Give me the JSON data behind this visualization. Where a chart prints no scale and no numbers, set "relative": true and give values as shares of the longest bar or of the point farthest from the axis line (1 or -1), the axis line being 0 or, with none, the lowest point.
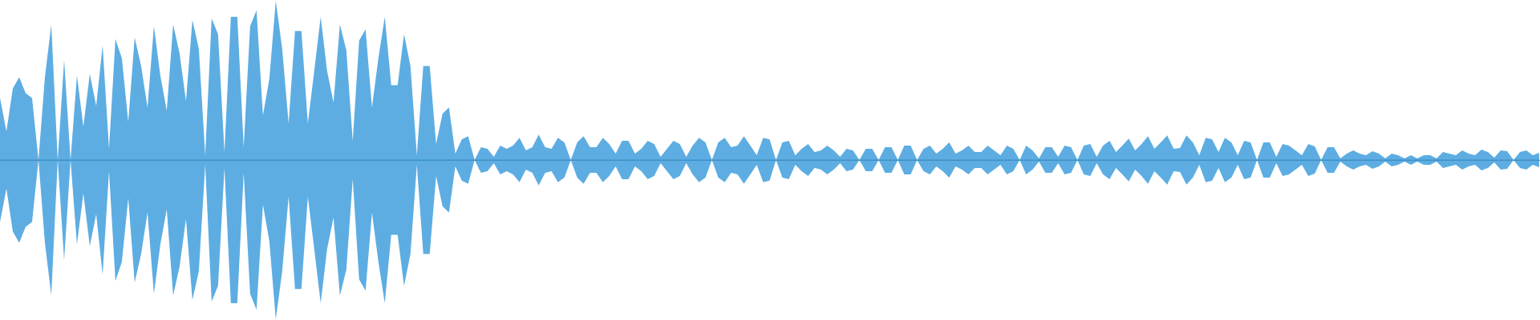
{
  "chart_data": {
    "type": "area",
    "relative": true,
    "tick_labels": false,
    "legend": false,
    "ref_lines": [
      {
        "axis": "y",
        "value": 0,
        "color": "#3f8fc5"
      }
    ],
    "categories": [
      null,
      null,
      null,
      null,
      null,
      null,
      null,
      null,
      null,
      null,
      null,
      null,
      null,
      null,
      null,
      null,
      null,
      null,
      null,
      null,
      null,
      null,
      null,
      null,
      null,
      null,
      null,
      null,
      null,
      null,
      null,
      null,
      null,
      null,
      null,
      null,
      null,
      null,
      null,
      null,
      null,
      null,
      null,
      null,
      null,
      null,
      null,
      null,
      null,
      null,
      null,
      null,
      null,
      null,
      null,
      null,
      null,
      null,
      null,
      null,
      null,
      null,
      null,
      null,
      null,
      null,
      null,
      null,
      null,
      null,
      null,
      null,
      null,
      null,
      null,
      null,
      null,
      null,
      null,
      null,
      null,
      null,
      null,
      null,
      null,
      null,
      null,
      null,
      null,
      null,
      null,
      null,
      null,
      null,
      null,
      null,
      null,
      null,
      null,
      null,
      null,
      null,
      null,
      null,
      null,
      null,
      null,
      null,
      null,
      null,
      null,
      null,
      null,
      null,
      null,
      null,
      null,
      null,
      null,
      null,
      null,
      null,
      null,
      null,
      null,
      null,
      null,
      null,
      null,
      null,
      null,
      null,
      null,
      null,
      null,
      null,
      null,
      null,
      null,
      null,
      null,
      null,
      null,
      null,
      null,
      null,
      null,
      null,
      null,
      null,
      null,
      null,
      null,
      null,
      null,
      null,
      null,
      null,
      null,
      null,
      null,
      null,
      null,
      null,
      null,
      null,
      null,
      null,
      null,
      null,
      null,
      null,
      null,
      null,
      null,
      null,
      null,
      null,
      null,
      null,
      null,
      null,
      null,
      null,
      null,
      null,
      null,
      null,
      null,
      null,
      null,
      null,
      null,
      null,
      null,
      null,
      null,
      null,
      null,
      null,
      null,
      null,
      null,
      null,
      null,
      null,
      null,
      null,
      null,
      null,
      null,
      null,
      null,
      null,
      null,
      null,
      null,
      null,
      null,
      null,
      null,
      null,
      null,
      null,
      null,
      null,
      null,
      null,
      null,
      null,
      null,
      null,
      null,
      null,
      null,
      null,
      null,
      null,
      null,
      null,
      null
    ],
    "series": [
      {
        "color": "#5dade2",
        "values": [
          0.39,
          0.18,
          0.45,
          0.52,
          0.42,
          0.39,
          0,
          0.52,
          0.85,
          0,
          0.63,
          0,
          0.53,
          0.21,
          0.54,
          0.34,
          0.72,
          0.07,
          0.76,
          0.64,
          0.24,
          0.77,
          0.59,
          0.33,
          0.84,
          0.53,
          0.31,
          0.85,
          0.67,
          0.37,
          0.88,
          0.7,
          0.03,
          0.89,
          0.79,
          0.05,
          0.9,
          0.9,
          0.08,
          0.84,
          0.94,
          0.28,
          0.51,
          1,
          0.7,
          0.23,
          0.81,
          0.81,
          0.23,
          0.56,
          0.9,
          0.56,
          0.36,
          0.85,
          0.69,
          0.12,
          0.75,
          0.82,
          0.33,
          0.64,
          0.9,
          0.47,
          0.47,
          0.79,
          0.59,
          0.03,
          0.59,
          0.59,
          0.1,
          0.29,
          0.33,
          0.04,
          0.13,
          0.15,
          0,
          0.08,
          0.07,
          0.02,
          0.09,
          0.07,
          0.09,
          0.14,
          0.06,
          0.08,
          0.16,
          0.08,
          0.07,
          0.14,
          0.11,
          0,
          0.11,
          0.15,
          0.08,
          0.08,
          0.14,
          0.1,
          0.04,
          0.12,
          0.12,
          0.04,
          0.07,
          0.12,
          0.1,
          0.02,
          0.07,
          0.12,
          0.1,
          0.02,
          0.09,
          0.14,
          0.11,
          0,
          0.11,
          0.14,
          0.08,
          0.09,
          0.15,
          0.09,
          0.03,
          0.14,
          0.13,
          0,
          0.11,
          0.12,
          0.03,
          0.07,
          0.1,
          0.05,
          0.06,
          0.09,
          0.06,
          0.02,
          0.07,
          0.06,
          0,
          0.07,
          0.07,
          0,
          0.08,
          0.08,
          0,
          0.09,
          0.09,
          0,
          0.07,
          0.09,
          0.04,
          0.07,
          0.11,
          0.04,
          0.06,
          0.09,
          0.05,
          0.05,
          0.09,
          0.06,
          0.03,
          0.09,
          0.07,
          0,
          0.09,
          0.06,
          0.01,
          0.08,
          0.08,
          0.02,
          0.09,
          0.08,
          0,
          0.09,
          0.1,
          0.02,
          0.09,
          0.12,
          0.05,
          0.09,
          0.135,
          0.06,
          0.1,
          0.15,
          0.07,
          0.11,
          0.155,
          0.07,
          0.075,
          0.155,
          0.11,
          0.03,
          0.14,
          0.13,
          0.05,
          0.14,
          0.11,
          0.03,
          0.12,
          0.11,
          0,
          0.11,
          0.11,
          0.02,
          0.1,
          0.09,
          0.06,
          0.03,
          0.1,
          0.085,
          0,
          0.08,
          0.08,
          0.01,
          0.04,
          0.06,
          0.04,
          0.03,
          0.055,
          0.04,
          0.01,
          0.04,
          0.03,
          0.01,
          0.03,
          0.01,
          0.03,
          0.03,
          0.01,
          0.05,
          0.04,
          0.03,
          0.06,
          0.04,
          0.03,
          0.065,
          0.05,
          0.015,
          0.06,
          0.055,
          0,
          0.05,
          0.06,
          0.03,
          0.045
        ]
      },
      {
        "color": "#5dade2",
        "values": [
          -0.39,
          -0.18,
          -0.45,
          -0.52,
          -0.42,
          -0.39,
          0,
          -0.52,
          -0.85,
          0,
          -0.63,
          0,
          -0.53,
          -0.21,
          -0.54,
          -0.34,
          -0.72,
          -0.07,
          -0.76,
          -0.64,
          -0.24,
          -0.77,
          -0.59,
          -0.33,
          -0.84,
          -0.53,
          -0.31,
          -0.85,
          -0.67,
          -0.37,
          -0.88,
          -0.7,
          -0.03,
          -0.89,
          -0.79,
          -0.05,
          -0.9,
          -0.9,
          -0.08,
          -0.84,
          -0.94,
          -0.28,
          -0.51,
          -1,
          -0.7,
          -0.23,
          -0.81,
          -0.81,
          -0.23,
          -0.56,
          -0.9,
          -0.56,
          -0.36,
          -0.85,
          -0.69,
          -0.12,
          -0.75,
          -0.82,
          -0.33,
          -0.64,
          -0.9,
          -0.47,
          -0.47,
          -0.79,
          -0.59,
          -0.03,
          -0.59,
          -0.59,
          -0.1,
          -0.29,
          -0.33,
          -0.04,
          -0.13,
          -0.15,
          0,
          -0.08,
          -0.07,
          -0.02,
          -0.09,
          -0.07,
          -0.09,
          -0.14,
          -0.06,
          -0.08,
          -0.16,
          -0.08,
          -0.07,
          -0.14,
          -0.11,
          0,
          -0.11,
          -0.15,
          -0.08,
          -0.08,
          -0.14,
          -0.1,
          -0.04,
          -0.12,
          -0.12,
          -0.04,
          -0.07,
          -0.12,
          -0.1,
          -0.02,
          -0.07,
          -0.12,
          -0.1,
          -0.02,
          -0.09,
          -0.14,
          -0.11,
          0,
          -0.11,
          -0.14,
          -0.08,
          -0.09,
          -0.15,
          -0.09,
          -0.03,
          -0.14,
          -0.13,
          0,
          -0.11,
          -0.12,
          -0.03,
          -0.07,
          -0.1,
          -0.05,
          -0.06,
          -0.09,
          -0.06,
          -0.02,
          -0.07,
          -0.06,
          0,
          -0.07,
          -0.07,
          0,
          -0.08,
          -0.08,
          0,
          -0.09,
          -0.09,
          0,
          -0.07,
          -0.09,
          -0.04,
          -0.07,
          -0.11,
          -0.04,
          -0.06,
          -0.09,
          -0.05,
          -0.05,
          -0.09,
          -0.06,
          -0.03,
          -0.09,
          -0.07,
          0,
          -0.09,
          -0.06,
          -0.01,
          -0.08,
          -0.08,
          -0.02,
          -0.09,
          -0.08,
          0,
          -0.09,
          -0.1,
          -0.02,
          -0.09,
          -0.12,
          -0.05,
          -0.09,
          -0.135,
          -0.06,
          -0.1,
          -0.15,
          -0.07,
          -0.11,
          -0.155,
          -0.07,
          -0.075,
          -0.155,
          -0.11,
          -0.03,
          -0.14,
          -0.13,
          -0.05,
          -0.14,
          -0.11,
          -0.03,
          -0.12,
          -0.11,
          0,
          -0.11,
          -0.11,
          -0.02,
          -0.1,
          -0.09,
          -0.06,
          -0.03,
          -0.1,
          -0.085,
          0,
          -0.08,
          -0.08,
          -0.01,
          -0.04,
          -0.06,
          -0.04,
          -0.03,
          -0.055,
          -0.04,
          -0.01,
          -0.04,
          -0.03,
          -0.01,
          -0.03,
          -0.01,
          -0.03,
          -0.03,
          -0.01,
          -0.05,
          -0.04,
          -0.03,
          -0.06,
          -0.04,
          -0.03,
          -0.065,
          -0.05,
          -0.015,
          -0.06,
          -0.055,
          0,
          -0.05,
          -0.06,
          -0.03,
          -0.045
        ]
      }
    ]
  }
}
